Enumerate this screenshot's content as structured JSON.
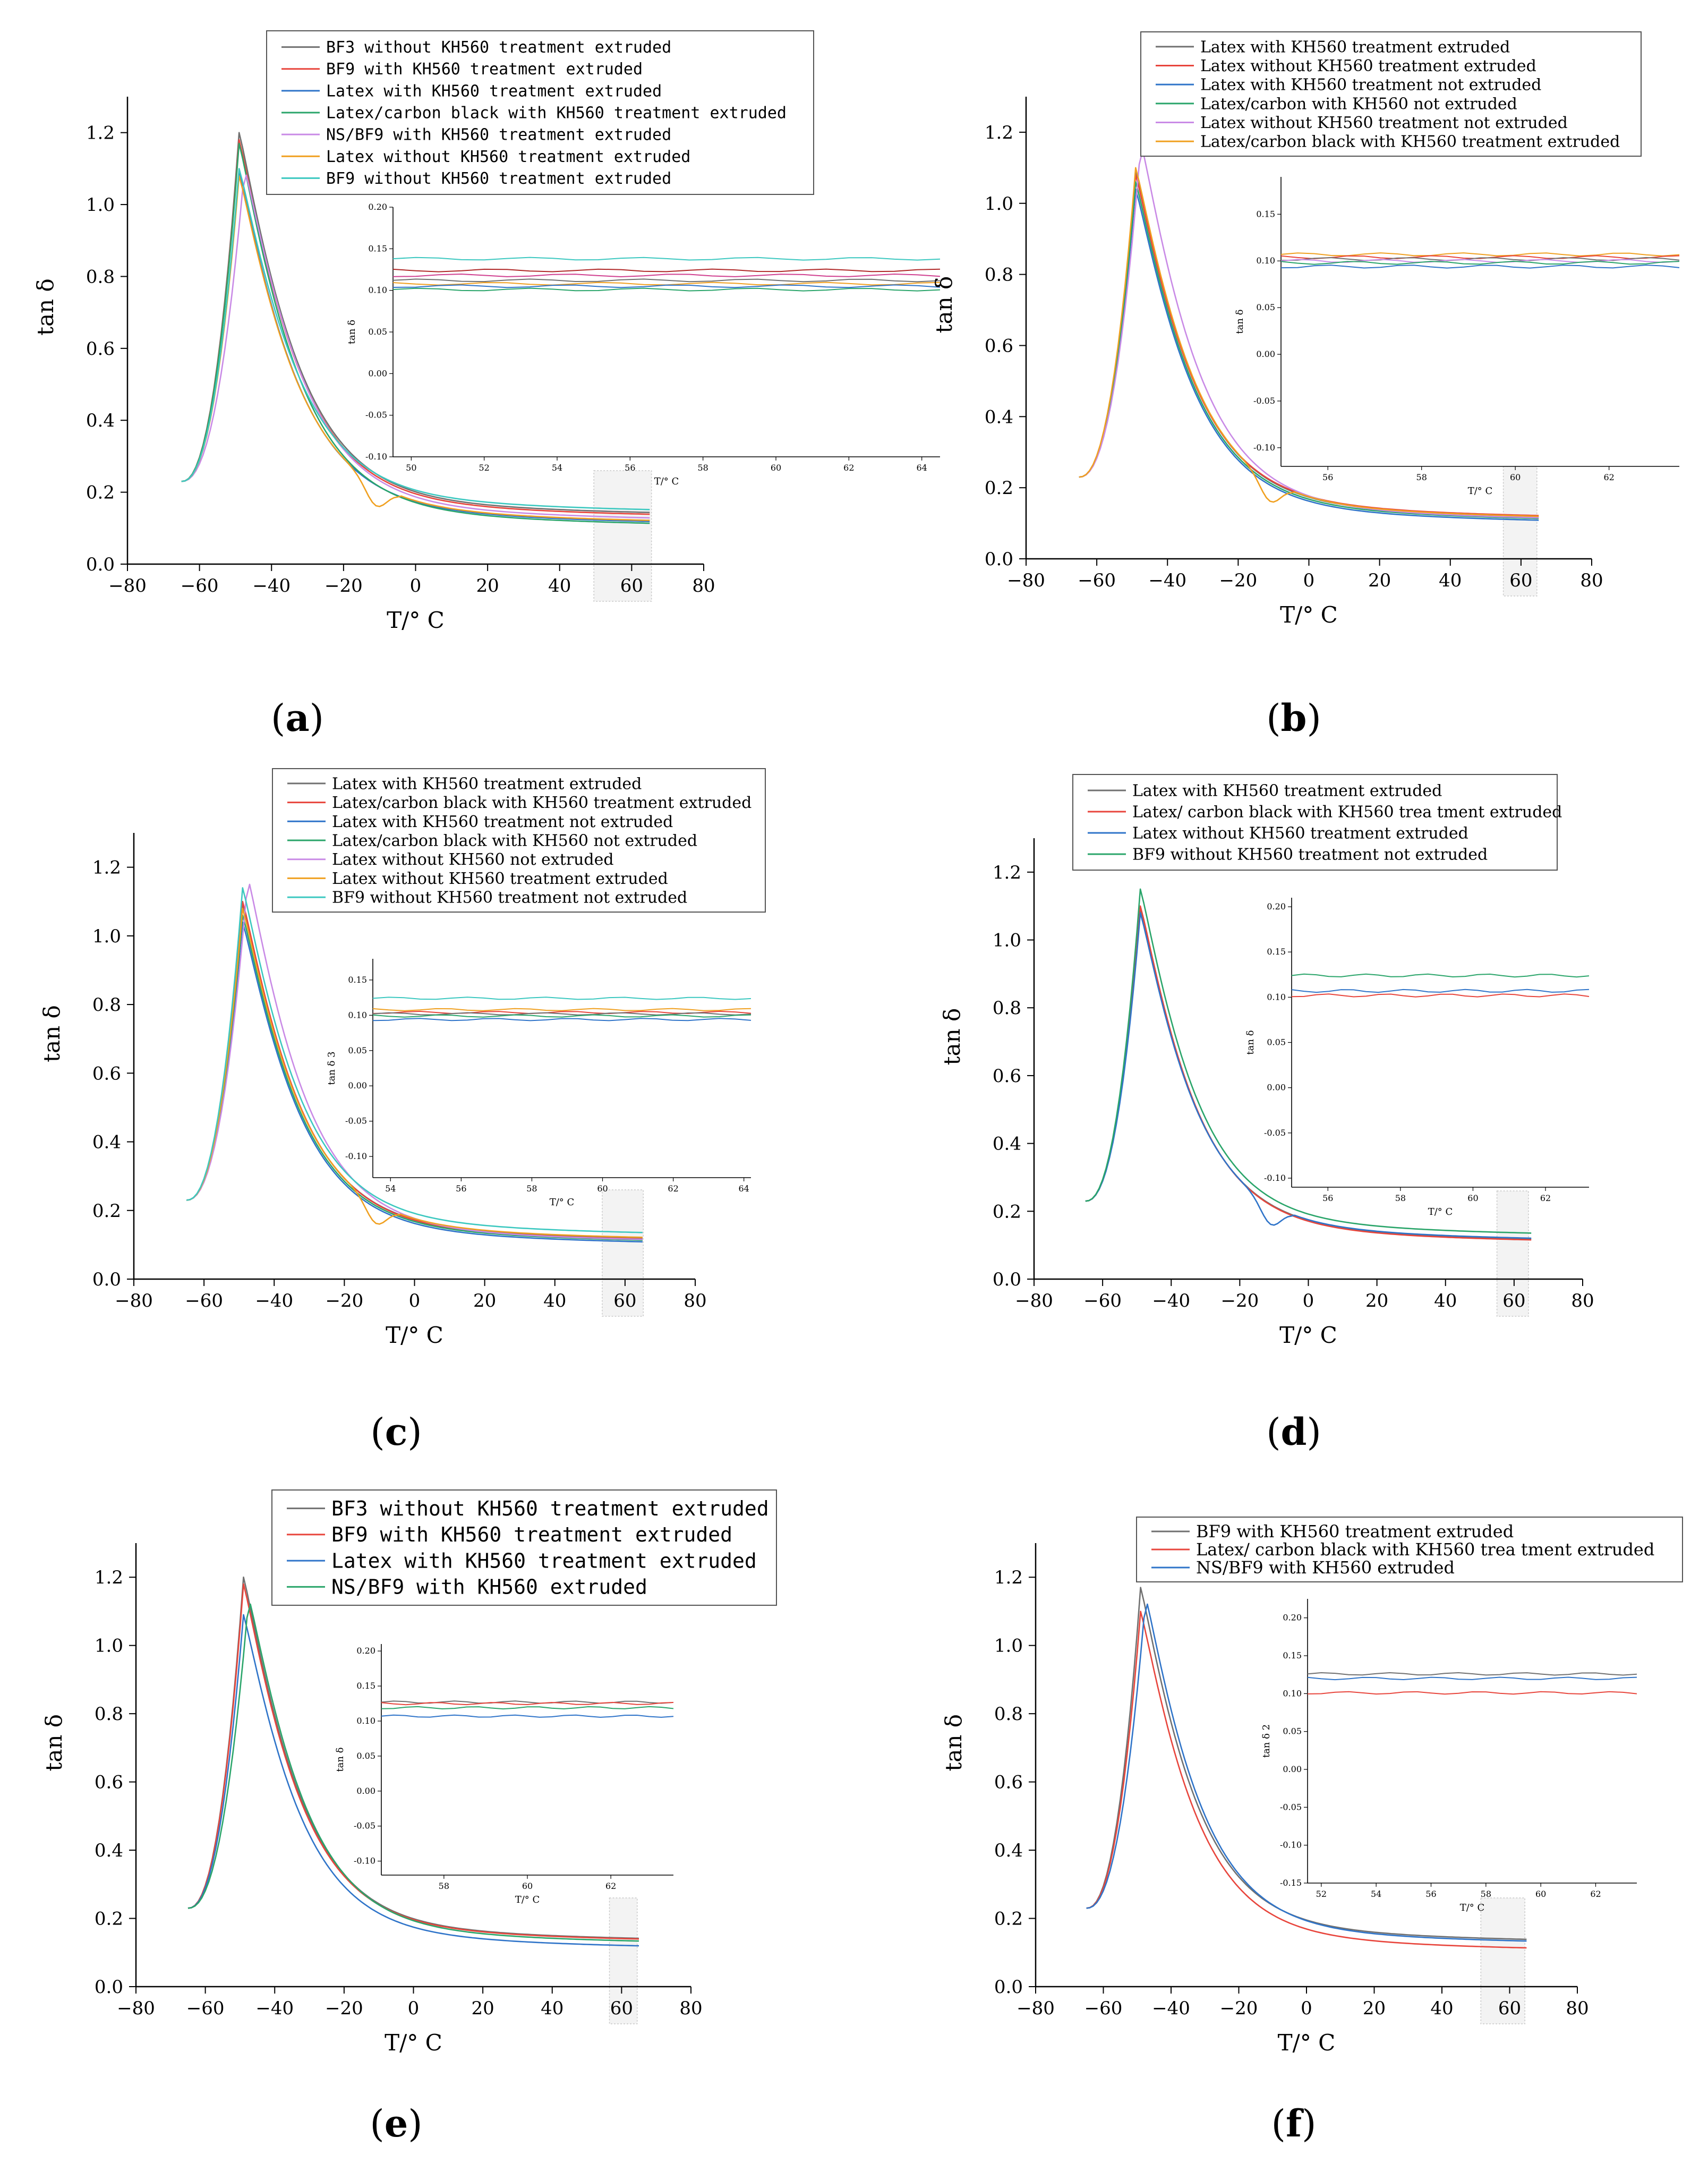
{
  "figure": {
    "panels": [
      {
        "id": "a",
        "label_text": "(a)",
        "label_letter": "a"
      },
      {
        "id": "b",
        "label_text": "(b)",
        "label_letter": "b"
      },
      {
        "id": "c",
        "label_text": "(c)",
        "label_letter": "c"
      },
      {
        "id": "d",
        "label_text": "(d)",
        "label_letter": "d"
      },
      {
        "id": "e",
        "label_text": "(e)",
        "label_letter": "e"
      },
      {
        "id": "f",
        "label_text": "(f)",
        "label_letter": "f"
      }
    ]
  },
  "colors": {
    "gray": "#707070",
    "red": "#e8453c",
    "blue": "#2f74c9",
    "green": "#2aa56a",
    "violet": "#c98ae6",
    "orange": "#f0a020",
    "cyan": "#3cc8c0",
    "pink": "#f06a78",
    "darkred": "#b02828",
    "magenta": "#d04090"
  },
  "chart_data": [
    {
      "id": "a",
      "type": "line",
      "xlabel": "T/° C",
      "ylabel": "tan δ",
      "xlim": [
        -80,
        80
      ],
      "ylim": [
        0,
        1.3
      ],
      "xticks": [
        -80,
        -60,
        -40,
        -20,
        0,
        20,
        40,
        60,
        80
      ],
      "xtick_labels": [
        "−80",
        "−60",
        "−40",
        "−20",
        "0",
        "20",
        "40",
        "60",
        "80"
      ],
      "yticks": [
        0,
        0.2,
        0.4,
        0.6,
        0.8,
        1.0,
        1.2
      ],
      "ytick_labels": [
        "0.0",
        "0.2",
        "0.4",
        "0.6",
        "0.8",
        "1.0",
        "1.2"
      ],
      "legend_position": "top",
      "series": [
        {
          "name": "BF3 without KH560 treatment extruded",
          "color": "gray",
          "peak": 1.2,
          "tail": 0.13
        },
        {
          "name": "BF9 with KH560 treatment extruded",
          "color": "red",
          "peak": 1.18,
          "tail": 0.125
        },
        {
          "name": "Latex with KH560 treatment extruded",
          "color": "blue",
          "peak": 1.09,
          "tail": 0.105
        },
        {
          "name": "Latex/carbon black with KH560 treatment extruded",
          "color": "green",
          "peak": 1.17,
          "tail": 0.1
        },
        {
          "name": "NS/BF9 with KH560 treatment extruded",
          "color": "violet",
          "peak": 1.1,
          "tail": 0.115,
          "variant": "late"
        },
        {
          "name": "Latex without KH560 treatment extruded",
          "color": "orange",
          "peak": 1.08,
          "tail": 0.108,
          "variant": "dip"
        },
        {
          "name": "BF9 without KH560 treatment extruded",
          "color": "cyan",
          "peak": 1.1,
          "tail": 0.138
        }
      ],
      "inset": {
        "ylabel": "tan δ",
        "xlabel": "T/° C",
        "xlim": [
          49.5,
          64.5
        ],
        "ylim": [
          -0.1,
          0.2
        ],
        "xticks": [
          50,
          52,
          54,
          56,
          58,
          60,
          62,
          64
        ],
        "xtick_labels": [
          "50",
          "52",
          "54",
          "56",
          "58",
          "60",
          "62",
          "64"
        ],
        "yticks": [
          -0.1,
          -0.05,
          0,
          0.05,
          0.1,
          0.15,
          0.2
        ],
        "ytick_labels": [
          "-0.10",
          "-0.05",
          "0.00",
          "0.05",
          "0.10",
          "0.15",
          "0.20"
        ],
        "lines": [
          {
            "color": "cyan",
            "value": 0.138
          },
          {
            "color": "darkred",
            "value": 0.124
          },
          {
            "color": "magenta",
            "value": 0.118
          },
          {
            "color": "gray",
            "value": 0.112
          },
          {
            "color": "orange",
            "value": 0.108
          },
          {
            "color": "blue",
            "value": 0.105
          },
          {
            "color": "green",
            "value": 0.101
          }
        ]
      }
    },
    {
      "id": "b",
      "type": "line",
      "xlabel": "T/° C",
      "ylabel": "tan δ",
      "xlim": [
        -80,
        80
      ],
      "ylim": [
        0,
        1.3
      ],
      "xticks": [
        -80,
        -60,
        -40,
        -20,
        0,
        20,
        40,
        60,
        80
      ],
      "xtick_labels": [
        "−80",
        "−60",
        "−40",
        "−20",
        "0",
        "20",
        "40",
        "60",
        "80"
      ],
      "yticks": [
        0,
        0.2,
        0.4,
        0.6,
        0.8,
        1.0,
        1.2
      ],
      "ytick_labels": [
        "0.0",
        "0.2",
        "0.4",
        "0.6",
        "0.8",
        "1.0",
        "1.2"
      ],
      "legend_position": "top-right",
      "series": [
        {
          "name": "Latex with KH560 treatment extruded",
          "color": "gray",
          "peak": 1.09,
          "tail": 0.105
        },
        {
          "name": "Latex without KH560 treatment extruded",
          "color": "red",
          "peak": 1.08,
          "tail": 0.108
        },
        {
          "name": "Latex with KH560 treatment not extruded",
          "color": "blue",
          "peak": 1.04,
          "tail": 0.095
        },
        {
          "name": "Latex/carbon with KH560 not extruded",
          "color": "green",
          "peak": 1.06,
          "tail": 0.1
        },
        {
          "name": "Latex without KH560 treatment not extruded",
          "color": "violet",
          "peak": 1.17,
          "tail": 0.102,
          "variant": "late"
        },
        {
          "name": "Latex/carbon black with KH560 treatment extruded",
          "color": "orange",
          "peak": 1.1,
          "tail": 0.106,
          "variant": "dip"
        }
      ],
      "inset": {
        "ylabel": "tan δ",
        "xlabel": "T/° C",
        "xlim": [
          55,
          63.5
        ],
        "ylim": [
          -0.12,
          0.19
        ],
        "xticks": [
          56,
          58,
          60,
          62
        ],
        "xtick_labels": [
          "56",
          "58",
          "60",
          "62"
        ],
        "yticks": [
          -0.1,
          -0.05,
          0,
          0.05,
          0.1,
          0.15
        ],
        "ytick_labels": [
          "-0.10",
          "-0.05",
          "0.00",
          "0.05",
          "0.10",
          "0.15"
        ],
        "lines": [
          {
            "color": "orange",
            "value": 0.107
          },
          {
            "color": "red",
            "value": 0.104
          },
          {
            "color": "gray",
            "value": 0.102
          },
          {
            "color": "violet",
            "value": 0.1
          },
          {
            "color": "green",
            "value": 0.098
          },
          {
            "color": "blue",
            "value": 0.094
          }
        ]
      }
    },
    {
      "id": "c",
      "type": "line",
      "xlabel": "T/° C",
      "ylabel": "tan δ",
      "xlim": [
        -80,
        80
      ],
      "ylim": [
        0,
        1.3
      ],
      "xticks": [
        -80,
        -60,
        -40,
        -20,
        0,
        20,
        40,
        60,
        80
      ],
      "xtick_labels": [
        "−80",
        "−60",
        "−40",
        "−20",
        "0",
        "20",
        "40",
        "60",
        "80"
      ],
      "yticks": [
        0,
        0.2,
        0.4,
        0.6,
        0.8,
        1.0,
        1.2
      ],
      "ytick_labels": [
        "0.0",
        "0.2",
        "0.4",
        "0.6",
        "0.8",
        "1.0",
        "1.2"
      ],
      "legend_position": "top",
      "series": [
        {
          "name": "Latex with KH560 treatment extruded",
          "color": "gray",
          "peak": 1.09,
          "tail": 0.105
        },
        {
          "name": "Latex/carbon black with KH560 treatment extruded",
          "color": "red",
          "peak": 1.1,
          "tail": 0.103
        },
        {
          "name": "Latex with KH560 treatment not extruded",
          "color": "blue",
          "peak": 1.04,
          "tail": 0.095
        },
        {
          "name": "Latex/carbon black with KH560 not extruded",
          "color": "green",
          "peak": 1.06,
          "tail": 0.1
        },
        {
          "name": "Latex without KH560 not extruded",
          "color": "violet",
          "peak": 1.17,
          "tail": 0.102,
          "variant": "late"
        },
        {
          "name": "Latex without KH560 treatment extruded",
          "color": "orange",
          "peak": 1.08,
          "tail": 0.108,
          "variant": "dip"
        },
        {
          "name": "BF9 without KH560 treatment not extruded",
          "color": "cyan",
          "peak": 1.14,
          "tail": 0.122
        }
      ],
      "inset": {
        "ylabel": "tan δ 3",
        "xlabel": "T/° C",
        "xlim": [
          53.5,
          64.2
        ],
        "ylim": [
          -0.13,
          0.18
        ],
        "xticks": [
          54,
          56,
          58,
          60,
          62,
          64
        ],
        "xtick_labels": [
          "54",
          "56",
          "58",
          "60",
          "62",
          "64"
        ],
        "yticks": [
          -0.1,
          -0.05,
          0,
          0.05,
          0.1,
          0.15
        ],
        "ytick_labels": [
          "-0.10",
          "-0.05",
          "0.00",
          "0.05",
          "0.10",
          "0.15"
        ],
        "lines": [
          {
            "color": "cyan",
            "value": 0.124
          },
          {
            "color": "orange",
            "value": 0.108
          },
          {
            "color": "red",
            "value": 0.104
          },
          {
            "color": "gray",
            "value": 0.102
          },
          {
            "color": "green",
            "value": 0.099
          },
          {
            "color": "blue",
            "value": 0.094
          }
        ]
      }
    },
    {
      "id": "d",
      "type": "line",
      "xlabel": "T/° C",
      "ylabel": "tan δ",
      "xlim": [
        -80,
        80
      ],
      "ylim": [
        0,
        1.3
      ],
      "xticks": [
        -80,
        -60,
        -40,
        -20,
        0,
        20,
        40,
        60,
        80
      ],
      "xtick_labels": [
        "−80",
        "−60",
        "−40",
        "−20",
        "0",
        "20",
        "40",
        "60",
        "80"
      ],
      "yticks": [
        0,
        0.2,
        0.4,
        0.6,
        0.8,
        1.0,
        1.2
      ],
      "ytick_labels": [
        "0.0",
        "0.2",
        "0.4",
        "0.6",
        "0.8",
        "1.0",
        "1.2"
      ],
      "legend_position": "top",
      "series": [
        {
          "name": "Latex with KH560 treatment extruded",
          "color": "gray",
          "peak": 1.09,
          "tail": 0.105
        },
        {
          "name": "Latex/ carbon black with KH560 trea tment extruded",
          "color": "red",
          "peak": 1.1,
          "tail": 0.102
        },
        {
          "name": "Latex without KH560 treatment extruded",
          "color": "blue",
          "peak": 1.08,
          "tail": 0.107,
          "variant": "dip"
        },
        {
          "name": "BF9 without KH560 treatment not extruded",
          "color": "green",
          "peak": 1.15,
          "tail": 0.122
        }
      ],
      "inset": {
        "ylabel": "tan δ",
        "xlabel": "T/° C",
        "xlim": [
          55,
          63.2
        ],
        "ylim": [
          -0.11,
          0.21
        ],
        "xticks": [
          56,
          58,
          60,
          62
        ],
        "xtick_labels": [
          "56",
          "58",
          "60",
          "62"
        ],
        "yticks": [
          -0.1,
          -0.05,
          0,
          0.05,
          0.1,
          0.15,
          0.2
        ],
        "ytick_labels": [
          "-0.10",
          "-0.05",
          "0.00",
          "0.05",
          "0.10",
          "0.15",
          "0.20"
        ],
        "lines": [
          {
            "color": "green",
            "value": 0.124
          },
          {
            "color": "blue",
            "value": 0.107
          },
          {
            "color": "red",
            "value": 0.102
          }
        ]
      }
    },
    {
      "id": "e",
      "type": "line",
      "xlabel": "T/° C",
      "ylabel": "tan δ",
      "xlim": [
        -80,
        80
      ],
      "ylim": [
        0,
        1.3
      ],
      "xticks": [
        -80,
        -60,
        -40,
        -20,
        0,
        20,
        40,
        60,
        80
      ],
      "xtick_labels": [
        "−80",
        "−60",
        "−40",
        "−20",
        "0",
        "20",
        "40",
        "60",
        "80"
      ],
      "yticks": [
        0,
        0.2,
        0.4,
        0.6,
        0.8,
        1.0,
        1.2
      ],
      "ytick_labels": [
        "0.0",
        "0.2",
        "0.4",
        "0.6",
        "0.8",
        "1.0",
        "1.2"
      ],
      "legend_position": "top",
      "series": [
        {
          "name": "BF3 without KH560 treatment extruded",
          "color": "gray",
          "peak": 1.2,
          "tail": 0.128
        },
        {
          "name": "BF9 with KH560 treatment extruded",
          "color": "red",
          "peak": 1.18,
          "tail": 0.126
        },
        {
          "name": "Latex with KH560 treatment extruded",
          "color": "blue",
          "peak": 1.09,
          "tail": 0.106
        },
        {
          "name": "NS/BF9 with KH560 extruded",
          "color": "green",
          "peak": 1.14,
          "tail": 0.12,
          "variant": "late"
        }
      ],
      "inset": {
        "ylabel": "tan δ",
        "xlabel": "T/° C",
        "xlim": [
          56.5,
          63.5
        ],
        "ylim": [
          -0.12,
          0.21
        ],
        "xticks": [
          58,
          60,
          62
        ],
        "xtick_labels": [
          "58",
          "60",
          "62"
        ],
        "yticks": [
          -0.1,
          -0.05,
          0,
          0.05,
          0.1,
          0.15,
          0.2
        ],
        "ytick_labels": [
          "-0.10",
          "-0.05",
          "0.00",
          "0.05",
          "0.10",
          "0.15",
          "0.20"
        ],
        "lines": [
          {
            "color": "gray",
            "value": 0.127
          },
          {
            "color": "red",
            "value": 0.125
          },
          {
            "color": "green",
            "value": 0.119
          },
          {
            "color": "blue",
            "value": 0.107
          }
        ]
      }
    },
    {
      "id": "f",
      "type": "line",
      "xlabel": "T/° C",
      "ylabel": "tan δ",
      "xlim": [
        -80,
        80
      ],
      "ylim": [
        0,
        1.3
      ],
      "xticks": [
        -80,
        -60,
        -40,
        -20,
        0,
        20,
        40,
        60,
        80
      ],
      "xtick_labels": [
        "−80",
        "−60",
        "−40",
        "−20",
        "0",
        "20",
        "40",
        "60",
        "80"
      ],
      "yticks": [
        0,
        0.2,
        0.4,
        0.6,
        0.8,
        1.0,
        1.2
      ],
      "ytick_labels": [
        "0.0",
        "0.2",
        "0.4",
        "0.6",
        "0.8",
        "1.0",
        "1.2"
      ],
      "legend_position": "top-right",
      "series": [
        {
          "name": "BF9 with KH560 treatment extruded",
          "color": "gray",
          "peak": 1.17,
          "tail": 0.125
        },
        {
          "name": "Latex/ carbon black with KH560 trea tment extruded",
          "color": "red",
          "peak": 1.1,
          "tail": 0.1
        },
        {
          "name": "NS/BF9 with KH560 extruded",
          "color": "blue",
          "peak": 1.14,
          "tail": 0.12,
          "variant": "late"
        }
      ],
      "inset": {
        "ylabel": "tan δ 2",
        "xlabel": "T/° C",
        "xlim": [
          51.5,
          63.5
        ],
        "ylim": [
          -0.15,
          0.225
        ],
        "xticks": [
          52,
          54,
          56,
          58,
          60,
          62
        ],
        "xtick_labels": [
          "52",
          "54",
          "56",
          "58",
          "60",
          "62"
        ],
        "yticks": [
          -0.15,
          -0.1,
          -0.05,
          0,
          0.05,
          0.1,
          0.15,
          0.2
        ],
        "ytick_labels": [
          "-0.15",
          "-0.10",
          "-0.05",
          "0.00",
          "0.05",
          "0.10",
          "0.15",
          "0.20"
        ],
        "lines": [
          {
            "color": "gray",
            "value": 0.126
          },
          {
            "color": "blue",
            "value": 0.12
          },
          {
            "color": "red",
            "value": 0.101
          }
        ]
      }
    }
  ]
}
